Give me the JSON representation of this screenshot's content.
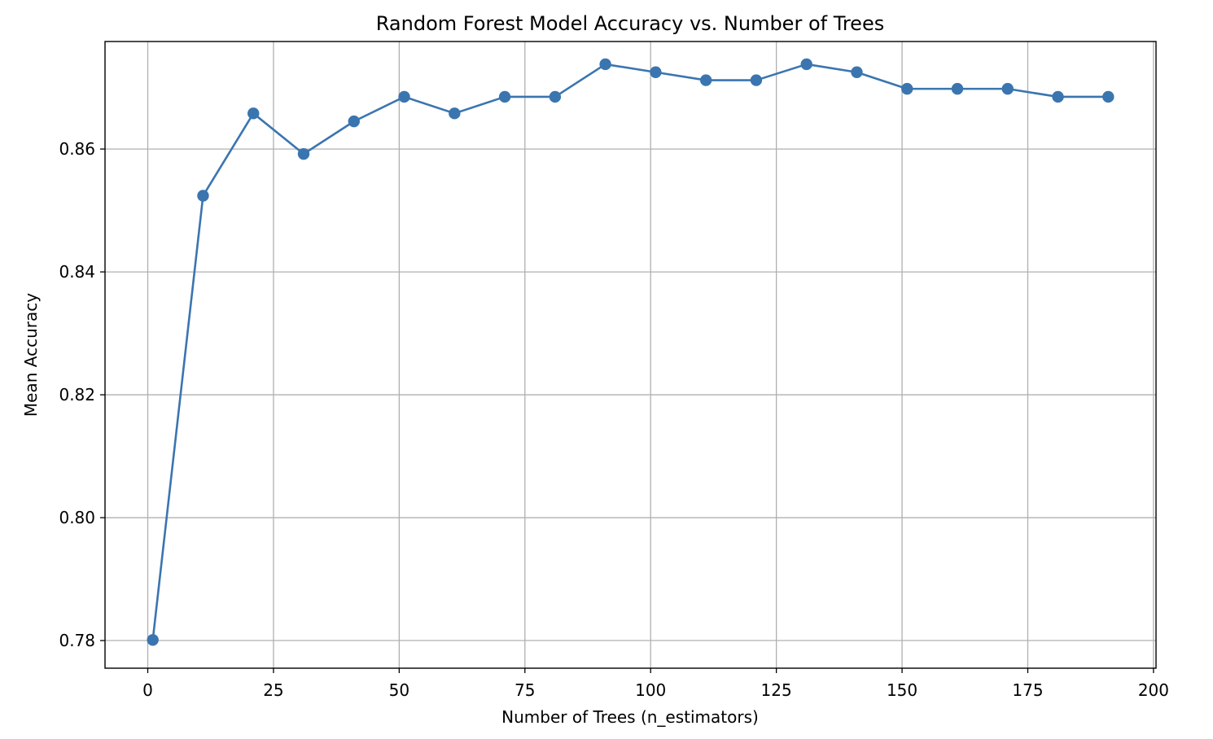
{
  "chart_data": {
    "type": "line",
    "title": "Random Forest Model Accuracy vs. Number of Trees",
    "xlabel": "Number of Trees (n_estimators)",
    "ylabel": "Mean Accuracy",
    "xlim": [
      -8.5,
      200.5
    ],
    "ylim": [
      0.7755,
      0.8775
    ],
    "x_ticks": [
      0,
      25,
      50,
      75,
      100,
      125,
      150,
      175,
      200
    ],
    "x_tick_labels": [
      "0",
      "25",
      "50",
      "75",
      "100",
      "125",
      "150",
      "175",
      "200"
    ],
    "y_ticks": [
      0.78,
      0.8,
      0.82,
      0.84,
      0.86
    ],
    "y_tick_labels": [
      "0.78",
      "0.80",
      "0.82",
      "0.84",
      "0.86"
    ],
    "grid": true,
    "marker": "circle",
    "color": "#3a75b0",
    "grid_color": "#b0b0b0",
    "series": [
      {
        "x": [
          1,
          11,
          21,
          31,
          41,
          51,
          61,
          71,
          81,
          91,
          101,
          111,
          121,
          131,
          141,
          151,
          161,
          171,
          181,
          191
        ],
        "values": [
          0.7801,
          0.8524,
          0.8658,
          0.8592,
          0.8645,
          0.8685,
          0.8658,
          0.8685,
          0.8685,
          0.8738,
          0.8725,
          0.8712,
          0.8712,
          0.8738,
          0.8725,
          0.8698,
          0.8698,
          0.8698,
          0.8685,
          0.8685
        ]
      }
    ]
  }
}
